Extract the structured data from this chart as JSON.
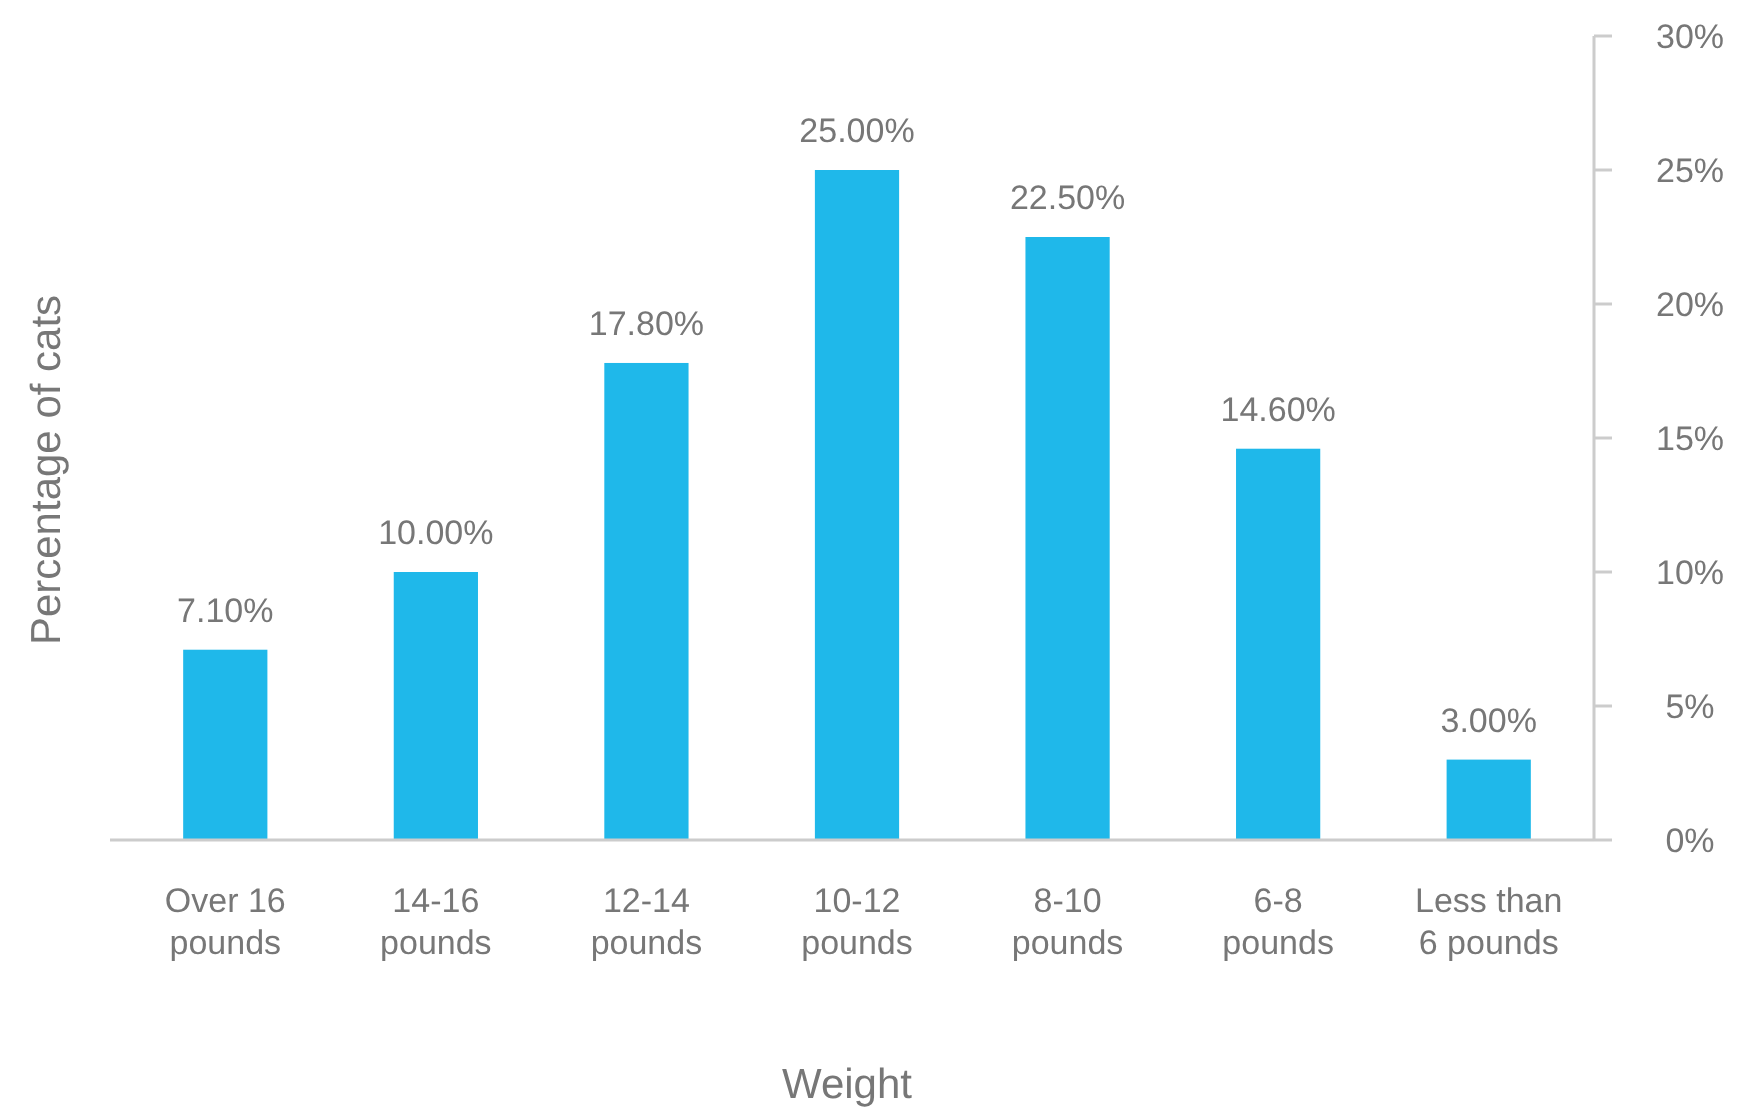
{
  "chart_data": {
    "type": "bar",
    "xlabel": "Weight",
    "ylabel": "Percentage of cats",
    "categories": [
      "Over 16\npounds",
      "14-16\npounds",
      "12-14\npounds",
      "10-12\npounds",
      "8-10\npounds",
      "6-8\npounds",
      "Less than\n6 pounds"
    ],
    "values": [
      7.1,
      10,
      17.8,
      25,
      22.5,
      14.6,
      3
    ],
    "value_labels": [
      "7.10%",
      "10.00%",
      "17.80%",
      "25.00%",
      "22.50%",
      "14.60%",
      "3.00%"
    ],
    "color": "#1fb8ea",
    "ylim": [
      0,
      30
    ],
    "yticks": [
      {
        "value": 0,
        "label": "0%"
      },
      {
        "value": 5,
        "label": "5%"
      },
      {
        "value": 10,
        "label": "10%"
      },
      {
        "value": 15,
        "label": "15%"
      },
      {
        "value": 20,
        "label": "20%"
      },
      {
        "value": 25,
        "label": "25%"
      },
      {
        "value": 30,
        "label": "30%"
      }
    ],
    "grid": false
  }
}
